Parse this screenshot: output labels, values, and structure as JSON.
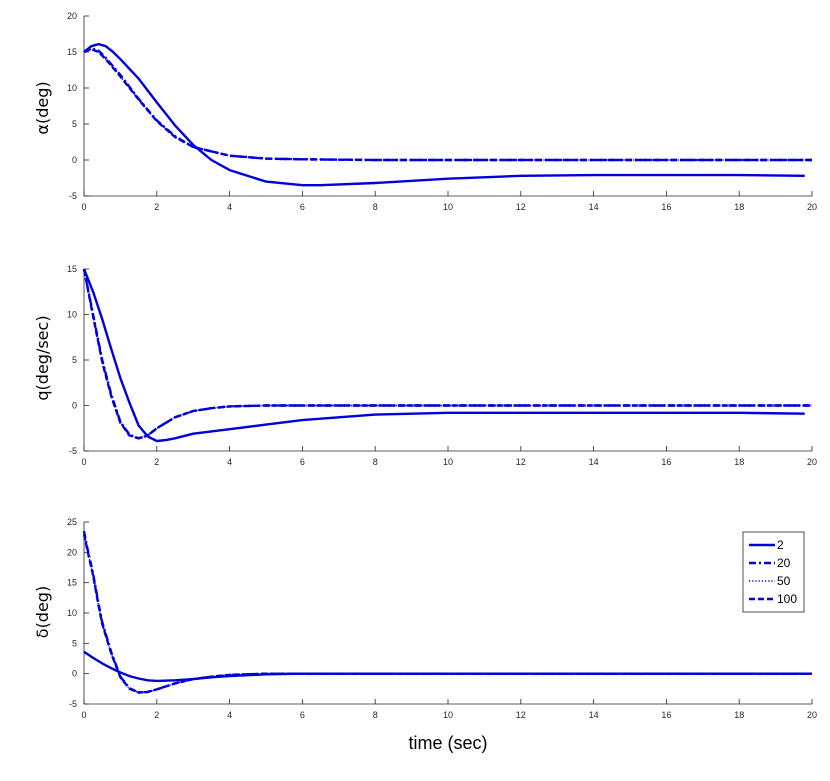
{
  "chart_data": [
    {
      "type": "line",
      "ylabel": "α(deg)",
      "xlim": [
        0,
        20
      ],
      "ylim": [
        -5,
        20
      ],
      "xticks": [
        "0",
        "2",
        "4",
        "6",
        "8",
        "10",
        "12",
        "14",
        "16",
        "18",
        "20"
      ],
      "yticks": [
        "-5",
        "0",
        "5",
        "10",
        "15",
        "20"
      ],
      "series": [
        {
          "name": "2",
          "style": "solid",
          "x": [
            0,
            0.2,
            0.4,
            0.6,
            0.8,
            1,
            1.5,
            2,
            2.5,
            3,
            3.5,
            4,
            5,
            6,
            6.5,
            8,
            10,
            12,
            14,
            16,
            18,
            19.8
          ],
          "y": [
            15,
            15.8,
            16.1,
            15.8,
            15,
            14,
            11.3,
            8,
            4.8,
            2.1,
            0,
            -1.4,
            -3,
            -3.5,
            -3.5,
            -3.2,
            -2.6,
            -2.2,
            -2.1,
            -2.1,
            -2.1,
            -2.2
          ]
        },
        {
          "name": "20",
          "style": "dashdot",
          "x": [
            0,
            0.2,
            0.4,
            0.6,
            0.8,
            1,
            1.5,
            2,
            2.5,
            3,
            4,
            5,
            6,
            8,
            10,
            20
          ],
          "y": [
            15,
            15.5,
            15.2,
            14.2,
            13,
            11.8,
            8.5,
            5.5,
            3.3,
            1.8,
            0.6,
            0.2,
            0.1,
            0,
            0,
            0
          ]
        },
        {
          "name": "50",
          "style": "dotted",
          "x": [
            0,
            0.2,
            0.4,
            0.6,
            0.8,
            1,
            1.5,
            2,
            2.5,
            3,
            4,
            5,
            6,
            8,
            10,
            20
          ],
          "y": [
            15,
            15.4,
            15,
            14,
            12.8,
            11.6,
            8.4,
            5.4,
            3.2,
            1.8,
            0.6,
            0.2,
            0.1,
            0,
            0,
            0
          ]
        },
        {
          "name": "100",
          "style": "dashed",
          "x": [
            0,
            0.2,
            0.4,
            0.6,
            0.8,
            1,
            1.5,
            2,
            2.5,
            3,
            4,
            5,
            6,
            8,
            10,
            20
          ],
          "y": [
            15,
            15.4,
            15,
            14,
            12.8,
            11.6,
            8.4,
            5.4,
            3.2,
            1.8,
            0.6,
            0.2,
            0.1,
            0,
            0,
            0
          ]
        }
      ]
    },
    {
      "type": "line",
      "ylabel": "q(deg/sec)",
      "xlim": [
        0,
        20
      ],
      "ylim": [
        -5,
        15
      ],
      "xticks": [
        "0",
        "2",
        "4",
        "6",
        "8",
        "10",
        "12",
        "14",
        "16",
        "18",
        "20"
      ],
      "yticks": [
        "-5",
        "0",
        "5",
        "10",
        "15"
      ],
      "series": [
        {
          "name": "2",
          "style": "solid",
          "x": [
            0,
            0.25,
            0.5,
            0.75,
            1,
            1.25,
            1.5,
            1.75,
            2,
            2.25,
            2.5,
            3,
            4,
            5,
            6,
            8,
            10,
            12,
            14,
            16,
            18,
            19.8
          ],
          "y": [
            15,
            12.5,
            9.5,
            6.2,
            3,
            0.3,
            -2.2,
            -3.4,
            -3.9,
            -3.8,
            -3.6,
            -3.1,
            -2.6,
            -2.1,
            -1.6,
            -1,
            -0.8,
            -0.8,
            -0.8,
            -0.8,
            -0.8,
            -0.9
          ]
        },
        {
          "name": "20",
          "style": "dashdot",
          "x": [
            0,
            0.25,
            0.5,
            0.75,
            1,
            1.25,
            1.5,
            1.75,
            2,
            2.5,
            3,
            3.5,
            4,
            5,
            6,
            20
          ],
          "y": [
            15,
            10,
            5,
            1.2,
            -1.8,
            -3.2,
            -3.6,
            -3.3,
            -2.5,
            -1.3,
            -0.6,
            -0.3,
            -0.1,
            0,
            0,
            0
          ]
        },
        {
          "name": "50",
          "style": "dotted",
          "x": [
            0,
            0.25,
            0.5,
            0.75,
            1,
            1.25,
            1.5,
            1.75,
            2,
            2.5,
            3,
            3.5,
            4,
            5,
            6,
            20
          ],
          "y": [
            15,
            9.8,
            4.8,
            1,
            -1.9,
            -3.3,
            -3.6,
            -3.3,
            -2.5,
            -1.3,
            -0.6,
            -0.3,
            -0.1,
            0,
            0,
            0
          ]
        },
        {
          "name": "100",
          "style": "dashed",
          "x": [
            0,
            0.25,
            0.5,
            0.75,
            1,
            1.25,
            1.5,
            1.75,
            2,
            2.5,
            3,
            3.5,
            4,
            5,
            6,
            20
          ],
          "y": [
            15,
            9.8,
            4.8,
            1,
            -1.9,
            -3.3,
            -3.6,
            -3.3,
            -2.5,
            -1.3,
            -0.6,
            -0.3,
            -0.1,
            0,
            0,
            0
          ]
        }
      ]
    },
    {
      "type": "line",
      "ylabel": "δ(deg)",
      "xlabel": "time (sec)",
      "xlim": [
        0,
        20
      ],
      "ylim": [
        -5,
        25
      ],
      "xticks": [
        "0",
        "2",
        "4",
        "6",
        "8",
        "10",
        "12",
        "14",
        "16",
        "18",
        "20"
      ],
      "yticks": [
        "-5",
        "0",
        "5",
        "10",
        "15",
        "20",
        "25"
      ],
      "legend_position": "top-right",
      "series": [
        {
          "name": "2",
          "style": "solid",
          "x": [
            0,
            0.25,
            0.5,
            0.75,
            1,
            1.25,
            1.5,
            1.75,
            2,
            2.5,
            3,
            3.5,
            4,
            5,
            6,
            8,
            10,
            14,
            20
          ],
          "y": [
            3.6,
            2.6,
            1.7,
            0.9,
            0.2,
            -0.4,
            -0.8,
            -1.1,
            -1.2,
            -1.1,
            -0.9,
            -0.6,
            -0.4,
            -0.1,
            0,
            0,
            0,
            0,
            0
          ]
        },
        {
          "name": "20",
          "style": "dashdot",
          "x": [
            0,
            0.1,
            0.25,
            0.4,
            0.5,
            0.75,
            1,
            1.25,
            1.5,
            1.75,
            2,
            2.5,
            3,
            3.5,
            4,
            5,
            6,
            20
          ],
          "y": [
            23.5,
            20.5,
            16.5,
            11.5,
            8.5,
            3.5,
            -0.5,
            -2.4,
            -3.1,
            -3,
            -2.6,
            -1.6,
            -0.9,
            -0.5,
            -0.2,
            0,
            0,
            0
          ]
        },
        {
          "name": "50",
          "style": "dotted",
          "x": [
            0,
            0.1,
            0.25,
            0.4,
            0.5,
            0.75,
            1,
            1.25,
            1.5,
            1.75,
            2,
            2.5,
            3,
            3.5,
            4,
            5,
            6,
            20
          ],
          "y": [
            23,
            20.2,
            16.2,
            11.2,
            8.2,
            3.3,
            -0.6,
            -2.5,
            -3.1,
            -3,
            -2.6,
            -1.6,
            -0.9,
            -0.5,
            -0.2,
            0,
            0,
            0
          ]
        },
        {
          "name": "100",
          "style": "dashed",
          "x": [
            0,
            0.1,
            0.25,
            0.4,
            0.5,
            0.75,
            1,
            1.25,
            1.5,
            1.75,
            2,
            2.5,
            3,
            3.5,
            4,
            5,
            6,
            20
          ],
          "y": [
            23,
            20.2,
            16.2,
            11.2,
            8.2,
            3.3,
            -0.6,
            -2.5,
            -3.1,
            -3,
            -2.6,
            -1.6,
            -0.9,
            -0.5,
            -0.2,
            0,
            0,
            0
          ]
        }
      ]
    }
  ],
  "colors": {
    "line": "#0000dd",
    "axis": "#262626"
  }
}
